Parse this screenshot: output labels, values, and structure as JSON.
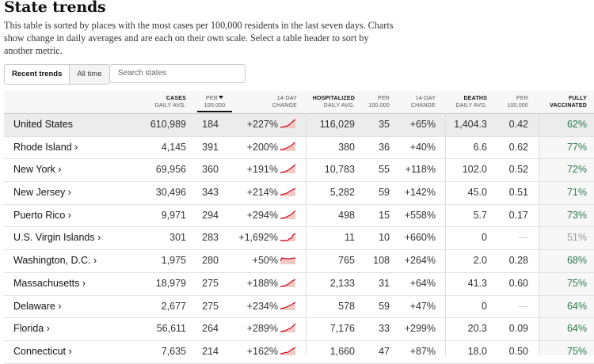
{
  "title": "State trends",
  "description": "This table is sorted by places with the most cases per 100,000 residents in the last seven days. Charts show change in daily averages and are each on their own scale. Select a table header to sort by another metric.",
  "tabs": [
    {
      "label": "Recent trends",
      "active": true
    },
    {
      "label": "All time",
      "active": false
    }
  ],
  "search": {
    "placeholder": "Search states"
  },
  "headers": {
    "cases": [
      "CASES",
      "DAILY AVG."
    ],
    "per100k": [
      "PER",
      "100,000"
    ],
    "change14": [
      "14-DAY",
      "CHANGE"
    ],
    "hosp": [
      "HOSPITALIZED",
      "DAILY AVG."
    ],
    "hosp_per": [
      "PER",
      "100,000"
    ],
    "hosp_change": [
      "14-DAY",
      "CHANGE"
    ],
    "deaths": [
      "DEATHS",
      "DAILY AVG."
    ],
    "deaths_per": [
      "PER",
      "100,000"
    ],
    "vacc": [
      "FULLY",
      "VACCINATED"
    ]
  },
  "rows": [
    {
      "name": "United States",
      "cases": "610,989",
      "per": "184",
      "change": "+227%",
      "hosp": "116,029",
      "hper": "35",
      "hchange": "+65%",
      "deaths": "1,404.3",
      "dper": "0.42",
      "vacc": "62%"
    },
    {
      "name": "Rhode Island ›",
      "cases": "4,145",
      "per": "391",
      "change": "+200%",
      "hosp": "380",
      "hper": "36",
      "hchange": "+40%",
      "deaths": "6.6",
      "dper": "0.62",
      "vacc": "77%"
    },
    {
      "name": "New York ›",
      "cases": "69,956",
      "per": "360",
      "change": "+191%",
      "hosp": "10,783",
      "hper": "55",
      "hchange": "+118%",
      "deaths": "102.0",
      "dper": "0.52",
      "vacc": "72%"
    },
    {
      "name": "New Jersey ›",
      "cases": "30,496",
      "per": "343",
      "change": "+214%",
      "hosp": "5,282",
      "hper": "59",
      "hchange": "+142%",
      "deaths": "45.0",
      "dper": "0.51",
      "vacc": "71%"
    },
    {
      "name": "Puerto Rico ›",
      "cases": "9,971",
      "per": "294",
      "change": "+294%",
      "hosp": "498",
      "hper": "15",
      "hchange": "+558%",
      "deaths": "5.7",
      "dper": "0.17",
      "vacc": "73%"
    },
    {
      "name": "U.S. Virgin Islands ›",
      "cases": "301",
      "per": "283",
      "change": "+1,692%",
      "hosp": "11",
      "hper": "10",
      "hchange": "+660%",
      "deaths": "0",
      "dper": "—",
      "vacc": "51%"
    },
    {
      "name": "Washington, D.C. ›",
      "cases": "1,975",
      "per": "280",
      "change": "+50%",
      "hosp": "765",
      "hper": "108",
      "hchange": "+264%",
      "deaths": "2.0",
      "dper": "0.28",
      "vacc": "68%"
    },
    {
      "name": "Massachusetts ›",
      "cases": "18,979",
      "per": "275",
      "change": "+188%",
      "hosp": "2,133",
      "hper": "31",
      "hchange": "+64%",
      "deaths": "41.3",
      "dper": "0.60",
      "vacc": "75%"
    },
    {
      "name": "Delaware ›",
      "cases": "2,677",
      "per": "275",
      "change": "+234%",
      "hosp": "578",
      "hper": "59",
      "hchange": "+47%",
      "deaths": "0",
      "dper": "—",
      "vacc": "64%"
    },
    {
      "name": "Florida ›",
      "cases": "56,611",
      "per": "264",
      "change": "+289%",
      "hosp": "7,176",
      "hper": "33",
      "hchange": "+299%",
      "deaths": "20.3",
      "dper": "0.09",
      "vacc": "64%"
    },
    {
      "name": "Connecticut ›",
      "cases": "7,635",
      "per": "214",
      "change": "+162%",
      "hosp": "1,660",
      "hper": "47",
      "hchange": "+87%",
      "deaths": "18.0",
      "dper": "0.50",
      "vacc": "75%"
    }
  ],
  "colors": {
    "spark_fill": "#f3c9c6",
    "spark_line": "#d0021b",
    "vacc_text": "#2a7a4a"
  }
}
